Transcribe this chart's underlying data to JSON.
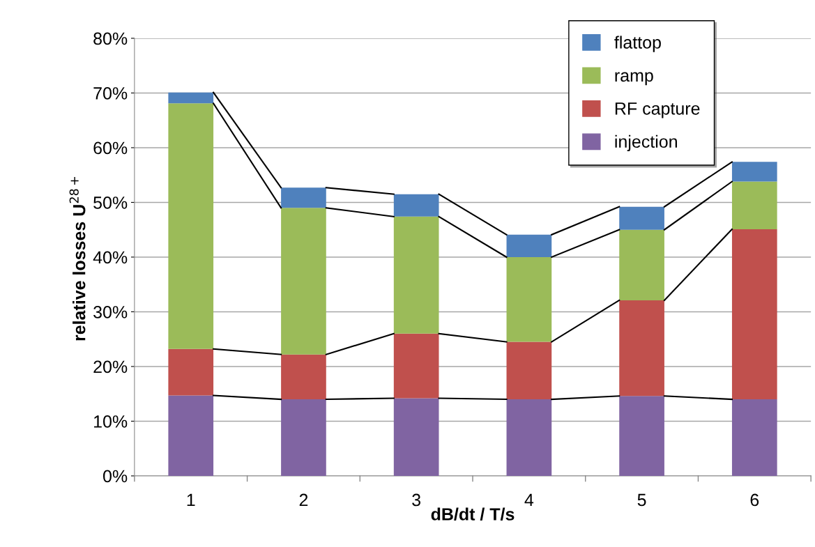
{
  "chart_data": {
    "type": "bar",
    "stacked": true,
    "xlabel": "dB/dt / T/s",
    "ylabel": "relative losses U$^{28+}$",
    "categories": [
      "1",
      "2",
      "3",
      "4",
      "5",
      "6"
    ],
    "series": [
      {
        "name": "injection",
        "color": "#8064a2",
        "values": [
          14.7,
          14.0,
          14.2,
          14.0,
          14.6,
          14.0
        ]
      },
      {
        "name": "RF capture",
        "color": "#c0504d",
        "values": [
          8.5,
          8.2,
          11.8,
          10.5,
          17.5,
          31.1
        ]
      },
      {
        "name": "ramp",
        "color": "#9bbb59",
        "values": [
          44.9,
          26.8,
          21.4,
          15.5,
          12.9,
          8.7
        ]
      },
      {
        "name": "flattop",
        "color": "#4f81bd",
        "values": [
          2.0,
          3.7,
          4.1,
          4.1,
          4.2,
          3.6
        ]
      }
    ],
    "ylim": [
      0,
      80
    ],
    "yticks": [
      {
        "value": 0,
        "label": "0%"
      },
      {
        "value": 10,
        "label": "10%"
      },
      {
        "value": 20,
        "label": "20%"
      },
      {
        "value": 30,
        "label": "30%"
      },
      {
        "value": 40,
        "label": "40%"
      },
      {
        "value": 50,
        "label": "50%"
      },
      {
        "value": 60,
        "label": "60%"
      },
      {
        "value": 70,
        "label": "70%"
      },
      {
        "value": 80,
        "label": "80%"
      }
    ],
    "grid": "y",
    "legend": "top right"
  }
}
